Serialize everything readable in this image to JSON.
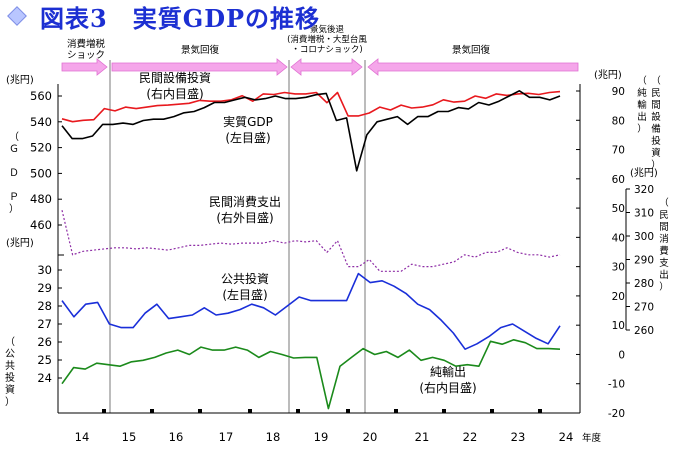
{
  "page": {
    "title": "図表3　実質GDPの推移"
  },
  "chart_data": {
    "type": "line",
    "xlabel": "年度",
    "x_ticks": [
      "14",
      "15",
      "16",
      "17",
      "18",
      "19",
      "20",
      "21",
      "22",
      "23",
      "24"
    ],
    "phases": [
      {
        "label": "消費増税\nショック",
        "direction": "right"
      },
      {
        "label": "景気回復",
        "direction": "right"
      },
      {
        "label": "景気後退\n(消費増税・大型台風\n・コロナショック)",
        "direction": "both"
      },
      {
        "label": "景気回復",
        "direction": "right"
      }
    ],
    "axes": {
      "left_outer": {
        "title": "（Ｇ Ｄ Ｐ）",
        "unit": "(兆円)",
        "ticks": [
          "460",
          "480",
          "500",
          "520",
          "540",
          "560"
        ],
        "ylim": [
          452,
          568
        ]
      },
      "left_inner": {
        "title": "（公共投資）",
        "unit": "(兆円)",
        "ticks": [
          "24",
          "25",
          "26",
          "27",
          "28",
          "29",
          "30"
        ],
        "ylim": [
          19.4,
          30.2
        ]
      },
      "right_inner": {
        "title": "（純輸出）（民間設備投資）",
        "unit": "(兆円)",
        "ticks": [
          "-20",
          "-10",
          "0",
          "10",
          "20",
          "30",
          "40",
          "50",
          "60",
          "70",
          "80",
          "90"
        ],
        "ylim": [
          -20,
          90
        ]
      },
      "right_outer": {
        "title": "（民間消費支出）",
        "unit": "(兆円)",
        "ticks": [
          "260",
          "270",
          "280",
          "290",
          "300",
          "310",
          "320"
        ],
        "ylim": [
          260,
          320
        ]
      }
    },
    "series": [
      {
        "name": "民間設備投資\n(右内目盛)",
        "color": "#e8191e",
        "axis": "right_inner",
        "values": [
          80.5,
          79.5,
          80,
          80.2,
          84,
          83.2,
          84.5,
          84,
          84.5,
          85,
          85.2,
          85.5,
          85.8,
          86.8,
          86.5,
          86.5,
          87,
          88.4,
          86.5,
          89,
          88.8,
          89.5,
          89,
          89,
          89.5,
          86,
          89.5,
          81.5,
          81.5,
          82.5,
          84.5,
          83.5,
          85.2,
          84.2,
          84.5,
          85.3,
          87,
          86.2,
          86.5,
          88.3,
          87.5,
          89,
          88.5,
          89,
          89.2,
          88.8,
          89.5,
          89.8
        ]
      },
      {
        "name": "実質GDP\n(左目盛)",
        "color": "#000000",
        "axis": "left_outer",
        "values": [
          537,
          527,
          527,
          529,
          538,
          538,
          539,
          538,
          541,
          542,
          542,
          544,
          547,
          548,
          551,
          555,
          555,
          557,
          559,
          557,
          558,
          560,
          558,
          558,
          559,
          561,
          562,
          541,
          543,
          502,
          530,
          540,
          542,
          544,
          538,
          544,
          544,
          548,
          548,
          551,
          550,
          555,
          553,
          556,
          560,
          564,
          559,
          559,
          557,
          560
        ]
      },
      {
        "name": "民間消費支出\n(右外目盛)",
        "color": "#8e2ea6",
        "axis": "right_outer",
        "values": [
          311,
          292,
          293.5,
          294,
          294.5,
          295,
          295,
          294.5,
          295,
          294.5,
          294,
          295,
          296,
          296,
          296.5,
          297,
          296.5,
          297,
          297,
          297,
          298,
          297,
          298,
          297.5,
          298,
          293,
          298,
          287,
          287,
          290,
          285,
          285,
          285,
          288,
          287,
          287,
          288,
          289,
          292,
          291,
          293,
          293,
          295,
          293,
          292,
          292,
          291,
          292
        ]
      },
      {
        "name": "公共投資\n(左目盛)",
        "color": "#1a2fd9",
        "axis": "left_inner",
        "values": [
          28.3,
          27.4,
          28.1,
          28.2,
          27,
          26.8,
          26.8,
          27.6,
          28.1,
          27.3,
          27.4,
          27.5,
          27.9,
          27.5,
          27.6,
          27.8,
          28.1,
          27.9,
          27.5,
          28,
          28.5,
          28.3,
          28.3,
          28.3,
          28.3,
          29.8,
          29.3,
          29.4,
          29.1,
          28.7,
          28.1,
          27.8,
          27.2,
          26.5,
          25.6,
          25.9,
          26.3,
          26.8,
          27,
          26.6,
          26.2,
          25.9,
          26.9
        ]
      },
      {
        "name": "純輸出\n(右内目盛)",
        "color": "#1b8a1b",
        "axis": "right_inner",
        "values": [
          -10,
          -4.5,
          -5,
          -3,
          -3.5,
          -4,
          -2.5,
          -2,
          -1,
          0.5,
          1.5,
          0,
          2.5,
          1.5,
          1.5,
          2.5,
          1.5,
          -1,
          1,
          0,
          -1.2,
          -1,
          -1,
          -18.5,
          -4,
          -1,
          2,
          0,
          1,
          -1,
          1.5,
          -2,
          -1,
          -2,
          -4,
          -3.5,
          -4,
          4.5,
          3.5,
          5,
          4,
          2,
          2,
          1.8
        ]
      }
    ],
    "grid": false
  }
}
